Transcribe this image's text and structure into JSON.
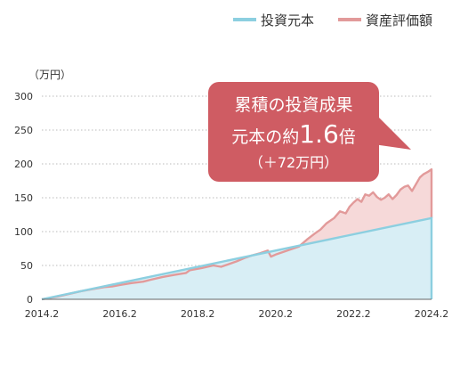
{
  "legend": {
    "principal_label": "投資元本",
    "value_label": "資産評価額"
  },
  "unit_label": "（万円）",
  "callout": {
    "line1": "累積の投資成果",
    "line2_prefix": "元本の約",
    "line2_number": "1.6",
    "line2_suffix": "倍",
    "line3": "（＋72万円）"
  },
  "colors": {
    "principal_line": "#8ccfe0",
    "principal_fill": "#d8eef5",
    "value_line": "#e29a9a",
    "value_fill": "#f6d9d9",
    "callout_bg": "#cf5c63"
  },
  "chart_data": {
    "type": "area",
    "x_ticks": [
      "2014.2",
      "2016.2",
      "2018.2",
      "2020.2",
      "2022.2",
      "2024.2"
    ],
    "y_ticks": [
      "0",
      "50",
      "100",
      "150",
      "200",
      "250",
      "300"
    ],
    "ylim": [
      0,
      300
    ],
    "xlim": [
      2014.2,
      2024.2
    ],
    "grid": true,
    "legend_position": "top-right",
    "series": [
      {
        "name": "投資元本",
        "points": [
          [
            2014.2,
            0
          ],
          [
            2024.2,
            120
          ]
        ]
      },
      {
        "name": "資産評価額",
        "points": [
          [
            2014.2,
            0
          ],
          [
            2014.6,
            4
          ],
          [
            2014.9,
            8
          ],
          [
            2015.2,
            12
          ],
          [
            2015.5,
            15
          ],
          [
            2015.8,
            18
          ],
          [
            2016.0,
            19
          ],
          [
            2016.2,
            21
          ],
          [
            2016.5,
            24
          ],
          [
            2016.8,
            26
          ],
          [
            2017.0,
            29
          ],
          [
            2017.3,
            33
          ],
          [
            2017.6,
            36
          ],
          [
            2017.9,
            39
          ],
          [
            2018.0,
            43
          ],
          [
            2018.3,
            46
          ],
          [
            2018.6,
            50
          ],
          [
            2018.8,
            48
          ],
          [
            2019.0,
            52
          ],
          [
            2019.2,
            56
          ],
          [
            2019.4,
            61
          ],
          [
            2019.6,
            65
          ],
          [
            2019.8,
            68
          ],
          [
            2020.0,
            72
          ],
          [
            2020.08,
            63
          ],
          [
            2020.2,
            66
          ],
          [
            2020.4,
            70
          ],
          [
            2020.6,
            74
          ],
          [
            2020.8,
            78
          ],
          [
            2021.0,
            88
          ],
          [
            2021.2,
            97
          ],
          [
            2021.35,
            103
          ],
          [
            2021.5,
            112
          ],
          [
            2021.7,
            120
          ],
          [
            2021.85,
            130
          ],
          [
            2022.0,
            127
          ],
          [
            2022.1,
            137
          ],
          [
            2022.2,
            143
          ],
          [
            2022.3,
            148
          ],
          [
            2022.4,
            144
          ],
          [
            2022.5,
            155
          ],
          [
            2022.6,
            153
          ],
          [
            2022.7,
            158
          ],
          [
            2022.8,
            151
          ],
          [
            2022.9,
            147
          ],
          [
            2023.0,
            150
          ],
          [
            2023.1,
            155
          ],
          [
            2023.2,
            148
          ],
          [
            2023.3,
            154
          ],
          [
            2023.4,
            162
          ],
          [
            2023.5,
            166
          ],
          [
            2023.6,
            168
          ],
          [
            2023.7,
            160
          ],
          [
            2023.8,
            170
          ],
          [
            2023.9,
            180
          ],
          [
            2024.0,
            185
          ],
          [
            2024.1,
            188
          ],
          [
            2024.2,
            192
          ]
        ]
      }
    ]
  }
}
